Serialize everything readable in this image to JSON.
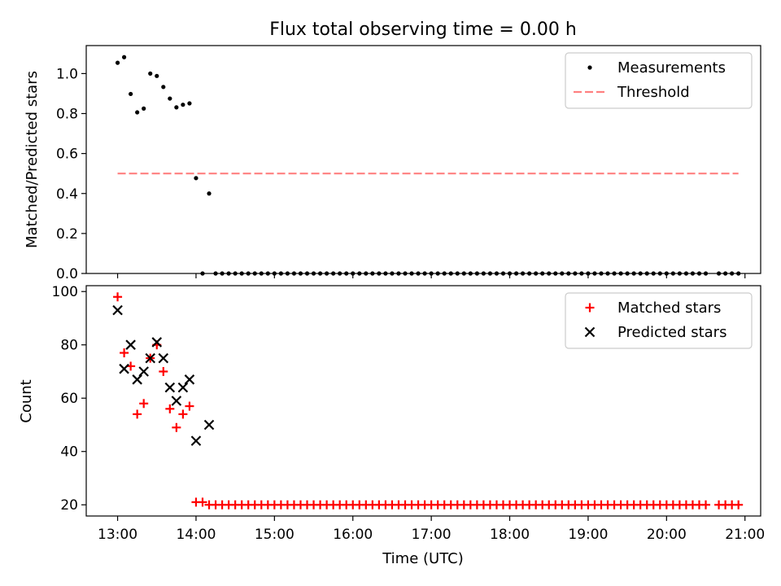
{
  "figure": {
    "title": "Flux total observing time = 0.00 h"
  },
  "chart_data": [
    {
      "type": "scatter",
      "title": "Flux total observing time = 0.00 h",
      "xlabel": "",
      "ylabel": "Matched/Predicted stars",
      "xlim": [
        "12:36",
        "21:12"
      ],
      "ylim": [
        0,
        1.14
      ],
      "x_ticks": [
        "13:00",
        "14:00",
        "15:00",
        "16:00",
        "17:00",
        "18:00",
        "19:00",
        "20:00",
        "21:00"
      ],
      "y_ticks": [
        0.0,
        0.2,
        0.4,
        0.6,
        0.8,
        1.0
      ],
      "y_tick_labels": [
        "0.0",
        "0.2",
        "0.4",
        "0.6",
        "0.8",
        "1.0"
      ],
      "grid": false,
      "legend_position": "top-right",
      "series": [
        {
          "name": "Measurements",
          "kind": "scatter",
          "marker": "dot",
          "color": "#000000",
          "points": [
            [
              "13:00",
              1.054
            ],
            [
              "13:05",
              1.082
            ],
            [
              "13:10",
              0.898
            ],
            [
              "13:15",
              0.806
            ],
            [
              "13:20",
              0.825
            ],
            [
              "13:25",
              1.0
            ],
            [
              "13:30",
              0.988
            ],
            [
              "13:35",
              0.933
            ],
            [
              "13:40",
              0.875
            ],
            [
              "13:45",
              0.831
            ],
            [
              "13:50",
              0.844
            ],
            [
              "13:55",
              0.851
            ],
            [
              "14:00",
              0.477
            ],
            [
              "14:10",
              0.4
            ],
            [
              "14:05",
              0
            ],
            [
              "14:15",
              0
            ],
            [
              "14:20",
              0
            ],
            [
              "14:25",
              0
            ],
            [
              "14:30",
              0
            ],
            [
              "14:35",
              0
            ],
            [
              "14:40",
              0
            ],
            [
              "14:45",
              0
            ],
            [
              "14:50",
              0
            ],
            [
              "14:55",
              0
            ],
            [
              "15:00",
              0
            ],
            [
              "15:05",
              0
            ],
            [
              "15:10",
              0
            ],
            [
              "15:15",
              0
            ],
            [
              "15:20",
              0
            ],
            [
              "15:25",
              0
            ],
            [
              "15:30",
              0
            ],
            [
              "15:35",
              0
            ],
            [
              "15:40",
              0
            ],
            [
              "15:45",
              0
            ],
            [
              "15:50",
              0
            ],
            [
              "15:55",
              0
            ],
            [
              "16:00",
              0
            ],
            [
              "16:05",
              0
            ],
            [
              "16:10",
              0
            ],
            [
              "16:15",
              0
            ],
            [
              "16:20",
              0
            ],
            [
              "16:25",
              0
            ],
            [
              "16:30",
              0
            ],
            [
              "16:35",
              0
            ],
            [
              "16:40",
              0
            ],
            [
              "16:45",
              0
            ],
            [
              "16:50",
              0
            ],
            [
              "16:55",
              0
            ],
            [
              "17:00",
              0
            ],
            [
              "17:05",
              0
            ],
            [
              "17:10",
              0
            ],
            [
              "17:15",
              0
            ],
            [
              "17:20",
              0
            ],
            [
              "17:25",
              0
            ],
            [
              "17:30",
              0
            ],
            [
              "17:35",
              0
            ],
            [
              "17:40",
              0
            ],
            [
              "17:45",
              0
            ],
            [
              "17:50",
              0
            ],
            [
              "17:55",
              0
            ],
            [
              "18:00",
              0
            ],
            [
              "18:05",
              0
            ],
            [
              "18:10",
              0
            ],
            [
              "18:15",
              0
            ],
            [
              "18:20",
              0
            ],
            [
              "18:25",
              0
            ],
            [
              "18:30",
              0
            ],
            [
              "18:35",
              0
            ],
            [
              "18:40",
              0
            ],
            [
              "18:45",
              0
            ],
            [
              "18:50",
              0
            ],
            [
              "18:55",
              0
            ],
            [
              "19:00",
              0
            ],
            [
              "19:05",
              0
            ],
            [
              "19:10",
              0
            ],
            [
              "19:15",
              0
            ],
            [
              "19:20",
              0
            ],
            [
              "19:25",
              0
            ],
            [
              "19:30",
              0
            ],
            [
              "19:35",
              0
            ],
            [
              "19:40",
              0
            ],
            [
              "19:45",
              0
            ],
            [
              "19:50",
              0
            ],
            [
              "19:55",
              0
            ],
            [
              "20:00",
              0
            ],
            [
              "20:05",
              0
            ],
            [
              "20:10",
              0
            ],
            [
              "20:15",
              0
            ],
            [
              "20:20",
              0
            ],
            [
              "20:25",
              0
            ],
            [
              "20:30",
              0
            ],
            [
              "20:40",
              0
            ],
            [
              "20:45",
              0
            ],
            [
              "20:50",
              0
            ],
            [
              "20:55",
              0
            ]
          ]
        },
        {
          "name": "Threshold",
          "kind": "line",
          "style": "dashed",
          "color": "#ff8080",
          "points": [
            [
              "13:00",
              0.5
            ],
            [
              "20:55",
              0.5
            ]
          ]
        }
      ]
    },
    {
      "type": "scatter",
      "xlabel": "Time (UTC)",
      "ylabel": "Count",
      "xlim": [
        "12:36",
        "21:12"
      ],
      "ylim": [
        15.8,
        102.2
      ],
      "x_ticks": [
        "13:00",
        "14:00",
        "15:00",
        "16:00",
        "17:00",
        "18:00",
        "19:00",
        "20:00",
        "21:00"
      ],
      "x_tick_labels": [
        "13:00",
        "14:00",
        "15:00",
        "16:00",
        "17:00",
        "18:00",
        "19:00",
        "20:00",
        "21:00"
      ],
      "y_ticks": [
        20,
        40,
        60,
        80,
        100
      ],
      "y_tick_labels": [
        "20",
        "40",
        "60",
        "80",
        "100"
      ],
      "grid": false,
      "legend_position": "top-right",
      "series": [
        {
          "name": "Matched stars",
          "marker": "plus",
          "color": "#ff0000",
          "points": [
            [
              "13:00",
              98
            ],
            [
              "13:05",
              77
            ],
            [
              "13:10",
              72
            ],
            [
              "13:15",
              54
            ],
            [
              "13:20",
              58
            ],
            [
              "13:25",
              75
            ],
            [
              "13:30",
              80
            ],
            [
              "13:35",
              70
            ],
            [
              "13:40",
              56
            ],
            [
              "13:45",
              49
            ],
            [
              "13:50",
              54
            ],
            [
              "13:55",
              57
            ],
            [
              "14:00",
              21
            ],
            [
              "14:05",
              21
            ],
            [
              "14:10",
              20
            ],
            [
              "14:15",
              20
            ],
            [
              "14:20",
              20
            ],
            [
              "14:25",
              20
            ],
            [
              "14:30",
              20
            ],
            [
              "14:35",
              20
            ],
            [
              "14:40",
              20
            ],
            [
              "14:45",
              20
            ],
            [
              "14:50",
              20
            ],
            [
              "14:55",
              20
            ],
            [
              "15:00",
              20
            ],
            [
              "15:05",
              20
            ],
            [
              "15:10",
              20
            ],
            [
              "15:15",
              20
            ],
            [
              "15:20",
              20
            ],
            [
              "15:25",
              20
            ],
            [
              "15:30",
              20
            ],
            [
              "15:35",
              20
            ],
            [
              "15:40",
              20
            ],
            [
              "15:45",
              20
            ],
            [
              "15:50",
              20
            ],
            [
              "15:55",
              20
            ],
            [
              "16:00",
              20
            ],
            [
              "16:05",
              20
            ],
            [
              "16:10",
              20
            ],
            [
              "16:15",
              20
            ],
            [
              "16:20",
              20
            ],
            [
              "16:25",
              20
            ],
            [
              "16:30",
              20
            ],
            [
              "16:35",
              20
            ],
            [
              "16:40",
              20
            ],
            [
              "16:45",
              20
            ],
            [
              "16:50",
              20
            ],
            [
              "16:55",
              20
            ],
            [
              "17:00",
              20
            ],
            [
              "17:05",
              20
            ],
            [
              "17:10",
              20
            ],
            [
              "17:15",
              20
            ],
            [
              "17:20",
              20
            ],
            [
              "17:25",
              20
            ],
            [
              "17:30",
              20
            ],
            [
              "17:35",
              20
            ],
            [
              "17:40",
              20
            ],
            [
              "17:45",
              20
            ],
            [
              "17:50",
              20
            ],
            [
              "17:55",
              20
            ],
            [
              "18:00",
              20
            ],
            [
              "18:05",
              20
            ],
            [
              "18:10",
              20
            ],
            [
              "18:15",
              20
            ],
            [
              "18:20",
              20
            ],
            [
              "18:25",
              20
            ],
            [
              "18:30",
              20
            ],
            [
              "18:35",
              20
            ],
            [
              "18:40",
              20
            ],
            [
              "18:45",
              20
            ],
            [
              "18:50",
              20
            ],
            [
              "18:55",
              20
            ],
            [
              "19:00",
              20
            ],
            [
              "19:05",
              20
            ],
            [
              "19:10",
              20
            ],
            [
              "19:15",
              20
            ],
            [
              "19:20",
              20
            ],
            [
              "19:25",
              20
            ],
            [
              "19:30",
              20
            ],
            [
              "19:35",
              20
            ],
            [
              "19:40",
              20
            ],
            [
              "19:45",
              20
            ],
            [
              "19:50",
              20
            ],
            [
              "19:55",
              20
            ],
            [
              "20:00",
              20
            ],
            [
              "20:05",
              20
            ],
            [
              "20:10",
              20
            ],
            [
              "20:15",
              20
            ],
            [
              "20:20",
              20
            ],
            [
              "20:25",
              20
            ],
            [
              "20:30",
              20
            ],
            [
              "20:40",
              20
            ],
            [
              "20:45",
              20
            ],
            [
              "20:50",
              20
            ],
            [
              "20:55",
              20
            ]
          ]
        },
        {
          "name": "Predicted stars",
          "marker": "x",
          "color": "#000000",
          "points": [
            [
              "13:00",
              93
            ],
            [
              "13:05",
              71
            ],
            [
              "13:10",
              80
            ],
            [
              "13:15",
              67
            ],
            [
              "13:20",
              70
            ],
            [
              "13:25",
              75
            ],
            [
              "13:30",
              81
            ],
            [
              "13:35",
              75
            ],
            [
              "13:40",
              64
            ],
            [
              "13:45",
              59
            ],
            [
              "13:50",
              64
            ],
            [
              "13:55",
              67
            ],
            [
              "14:00",
              44
            ],
            [
              "14:10",
              50
            ]
          ]
        }
      ]
    }
  ]
}
